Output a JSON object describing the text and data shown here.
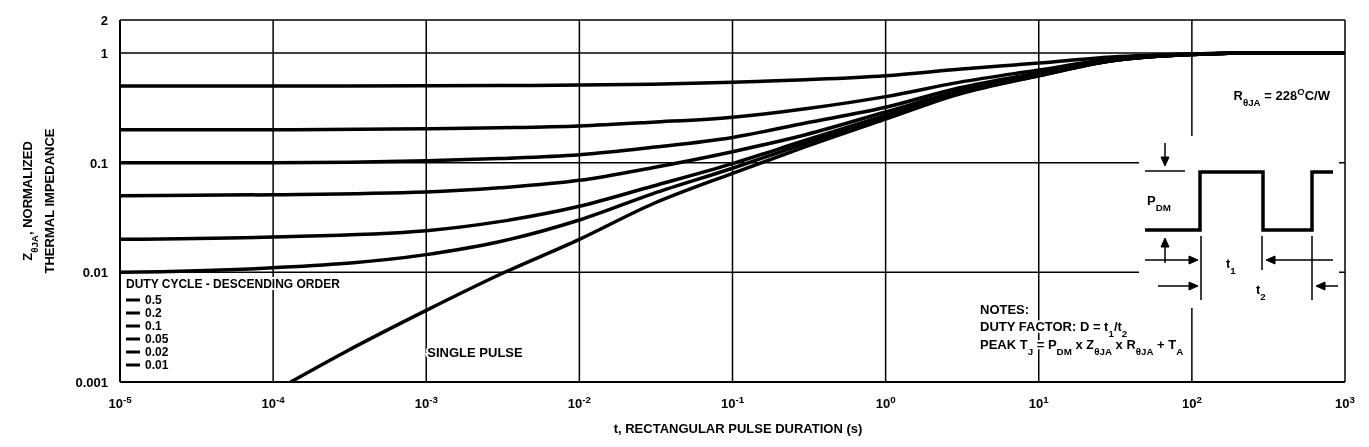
{
  "chart_data": {
    "type": "line",
    "xlabel": "t, RECTANGULAR PULSE DURATION (s)",
    "ylabel": "Z$_{θJA}$, NORMALIZED\nTHERMAL IMPEDANCE",
    "legend_title": "DUTY CYCLE - DESCENDING ORDER",
    "log": "xy",
    "grid": true,
    "legend": "bottom left",
    "xlim": [
      1e-05,
      1000
    ],
    "xticks": [
      {
        "value": 1e-05,
        "label": "10$^{-5}$"
      },
      {
        "value": 0.0001,
        "label": "10$^{-4}$"
      },
      {
        "value": 0.001,
        "label": "10$^{-3}$"
      },
      {
        "value": 0.01,
        "label": "10$^{-2}$"
      },
      {
        "value": 0.1,
        "label": "10$^{-1}$"
      },
      {
        "value": 1,
        "label": "10$^{0}$"
      },
      {
        "value": 10,
        "label": "10$^{1}$"
      },
      {
        "value": 100,
        "label": "10$^{2}$"
      },
      {
        "value": 1000,
        "label": "10$^{3}$"
      }
    ],
    "ylim": [
      0.001,
      2
    ],
    "yticks": [
      0.001,
      0.01,
      0.1,
      1,
      2
    ],
    "x": [
      1e-05,
      0.0001,
      0.001,
      0.003,
      0.01,
      0.03,
      0.1,
      0.3,
      1,
      3,
      10,
      30,
      100,
      300,
      1000
    ],
    "series": [
      {
        "name": "0.5",
        "color": "#000000",
        "values": [
          0.5,
          0.5,
          0.502,
          0.505,
          0.51,
          0.52,
          0.54,
          0.57,
          0.62,
          0.71,
          0.81,
          0.92,
          0.98,
          1.0,
          1.0
        ]
      },
      {
        "name": "0.2",
        "color": "#000000",
        "values": [
          0.2,
          0.2,
          0.204,
          0.208,
          0.216,
          0.234,
          0.26,
          0.31,
          0.4,
          0.54,
          0.7,
          0.88,
          0.98,
          1.0,
          1.0
        ]
      },
      {
        "name": "0.1",
        "color": "#000000",
        "values": [
          0.1,
          0.1,
          0.104,
          0.109,
          0.118,
          0.138,
          0.17,
          0.23,
          0.32,
          0.48,
          0.66,
          0.86,
          0.97,
          1.0,
          1.0
        ]
      },
      {
        "name": "0.05",
        "color": "#000000",
        "values": [
          0.05,
          0.051,
          0.054,
          0.059,
          0.069,
          0.09,
          0.126,
          0.18,
          0.29,
          0.45,
          0.64,
          0.86,
          0.97,
          1.0,
          1.0
        ]
      },
      {
        "name": "0.02",
        "color": "#000000",
        "values": [
          0.02,
          0.021,
          0.024,
          0.029,
          0.04,
          0.061,
          0.098,
          0.16,
          0.27,
          0.43,
          0.63,
          0.85,
          0.97,
          1.0,
          1.0
        ]
      },
      {
        "name": "0.01",
        "color": "#000000",
        "values": [
          0.01,
          0.011,
          0.0145,
          0.019,
          0.03,
          0.052,
          0.089,
          0.15,
          0.26,
          0.43,
          0.62,
          0.85,
          0.97,
          1.0,
          1.0
        ]
      },
      {
        "color": "#000000",
        "x": [
          0.00013,
          0.0003,
          0.001,
          0.003,
          0.01,
          0.03,
          0.1,
          0.3,
          1,
          3,
          10,
          30,
          100,
          300,
          1000
        ],
        "values": [
          0.001,
          0.0019,
          0.0045,
          0.0095,
          0.02,
          0.042,
          0.08,
          0.14,
          0.25,
          0.42,
          0.62,
          0.85,
          0.97,
          1.0,
          1.0
        ]
      }
    ],
    "annotations": [
      "SINGLE PULSE",
      "R$_{θJA}$ = 228$^{O}$C/W",
      "NOTES:",
      "DUTY FACTOR: D = t$_{1}$/t$_{2}$",
      "PEAK T$_{J}$ = P$_{DM}$ x Z$_{θJA}$ x R$_{θJA}$ + T$_{A}$",
      "P$_{DM}$",
      "t$_{1}$",
      "t$_{2}$"
    ]
  }
}
